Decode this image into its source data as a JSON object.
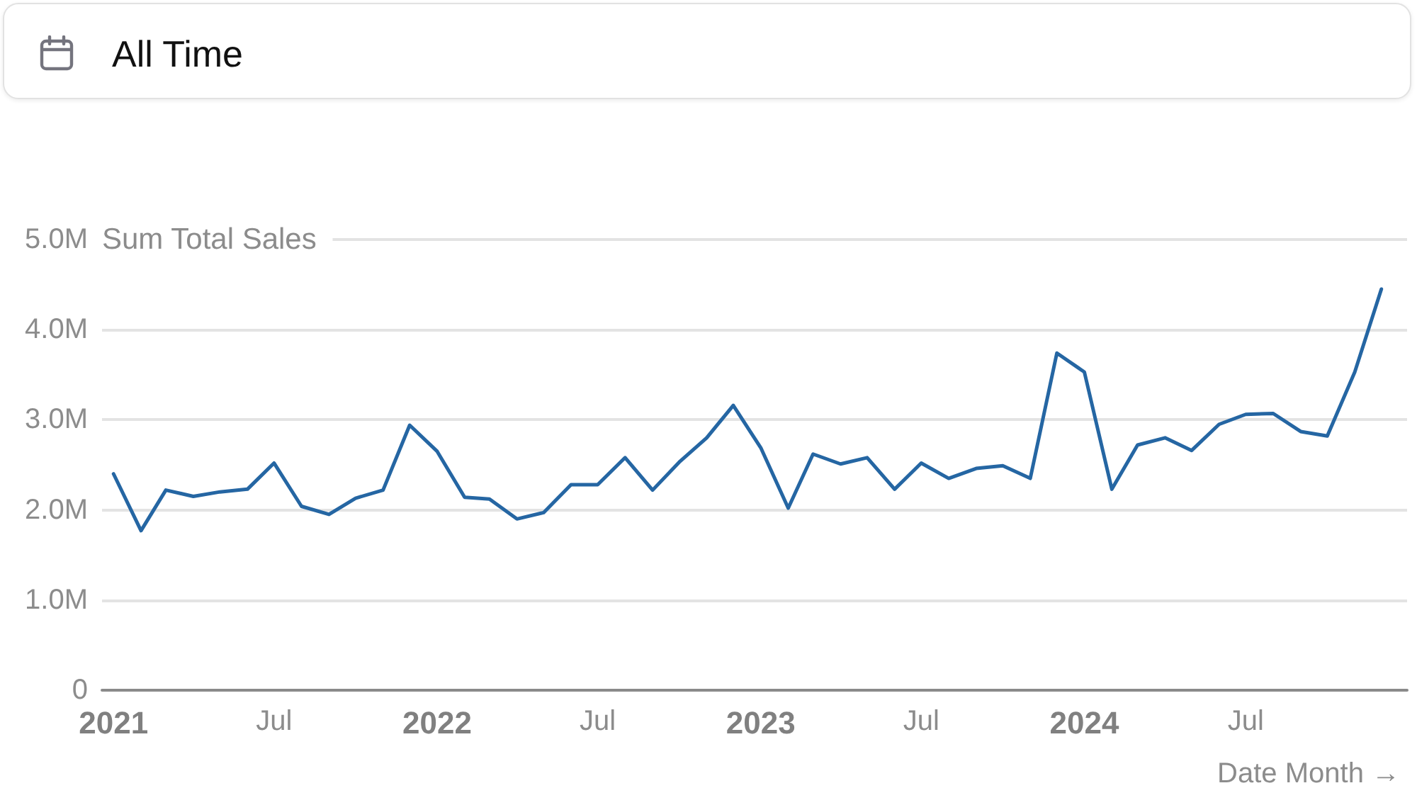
{
  "chart_data": {
    "type": "line",
    "title": "All Time",
    "ylabel": "Sum Total Sales",
    "xlabel": "Date Month →",
    "x": [
      "2021-01",
      "2021-02",
      "2021-03",
      "2021-04",
      "2021-05",
      "2021-06",
      "2021-07",
      "2021-08",
      "2021-09",
      "2021-10",
      "2021-11",
      "2021-12",
      "2022-01",
      "2022-02",
      "2022-03",
      "2022-04",
      "2022-05",
      "2022-06",
      "2022-07",
      "2022-08",
      "2022-09",
      "2022-10",
      "2022-11",
      "2022-12",
      "2023-01",
      "2023-02",
      "2023-03",
      "2023-04",
      "2023-05",
      "2023-06",
      "2023-07",
      "2023-08",
      "2023-09",
      "2023-10",
      "2023-11",
      "2023-12",
      "2024-01",
      "2024-02",
      "2024-03",
      "2024-04",
      "2024-05",
      "2024-06",
      "2024-07",
      "2024-08",
      "2024-09",
      "2024-10",
      "2024-11",
      "2024-12"
    ],
    "values": [
      2400000,
      1770000,
      2220000,
      2150000,
      2200000,
      2230000,
      2520000,
      2040000,
      1950000,
      2130000,
      2220000,
      2940000,
      2650000,
      2140000,
      2120000,
      1900000,
      1970000,
      2280000,
      2280000,
      2580000,
      2220000,
      2530000,
      2800000,
      3160000,
      2690000,
      2020000,
      2620000,
      2510000,
      2580000,
      2230000,
      2520000,
      2350000,
      2460000,
      2490000,
      2350000,
      3740000,
      3530000,
      2230000,
      2720000,
      2800000,
      2660000,
      2950000,
      3060000,
      3070000,
      2870000,
      2820000,
      3530000,
      4450000
    ],
    "color": "#2566a3",
    "xlim": [
      "2020-12-19",
      "2024-12-30"
    ],
    "xticks": [
      {
        "value": "2021-01",
        "label": "2021"
      },
      {
        "value": "2021-07",
        "label": "Jul"
      },
      {
        "value": "2022-01",
        "label": "2022"
      },
      {
        "value": "2022-07",
        "label": "Jul"
      },
      {
        "value": "2023-01",
        "label": "2023"
      },
      {
        "value": "2023-07",
        "label": "Jul"
      },
      {
        "value": "2024-01",
        "label": "2024"
      },
      {
        "value": "2024-07",
        "label": "Jul"
      }
    ],
    "ylim": [
      0,
      5000000
    ],
    "yticks": [
      0,
      {
        "value": 1000000,
        "label": "1.0M"
      },
      {
        "value": 2000000,
        "label": "2.0M"
      },
      {
        "value": 3000000,
        "label": "3.0M"
      },
      {
        "value": 4000000,
        "label": "4.0M"
      },
      {
        "value": 5000000,
        "label": "5.0M"
      }
    ],
    "grid": "y",
    "marker": "none",
    "line_style": "solid"
  }
}
